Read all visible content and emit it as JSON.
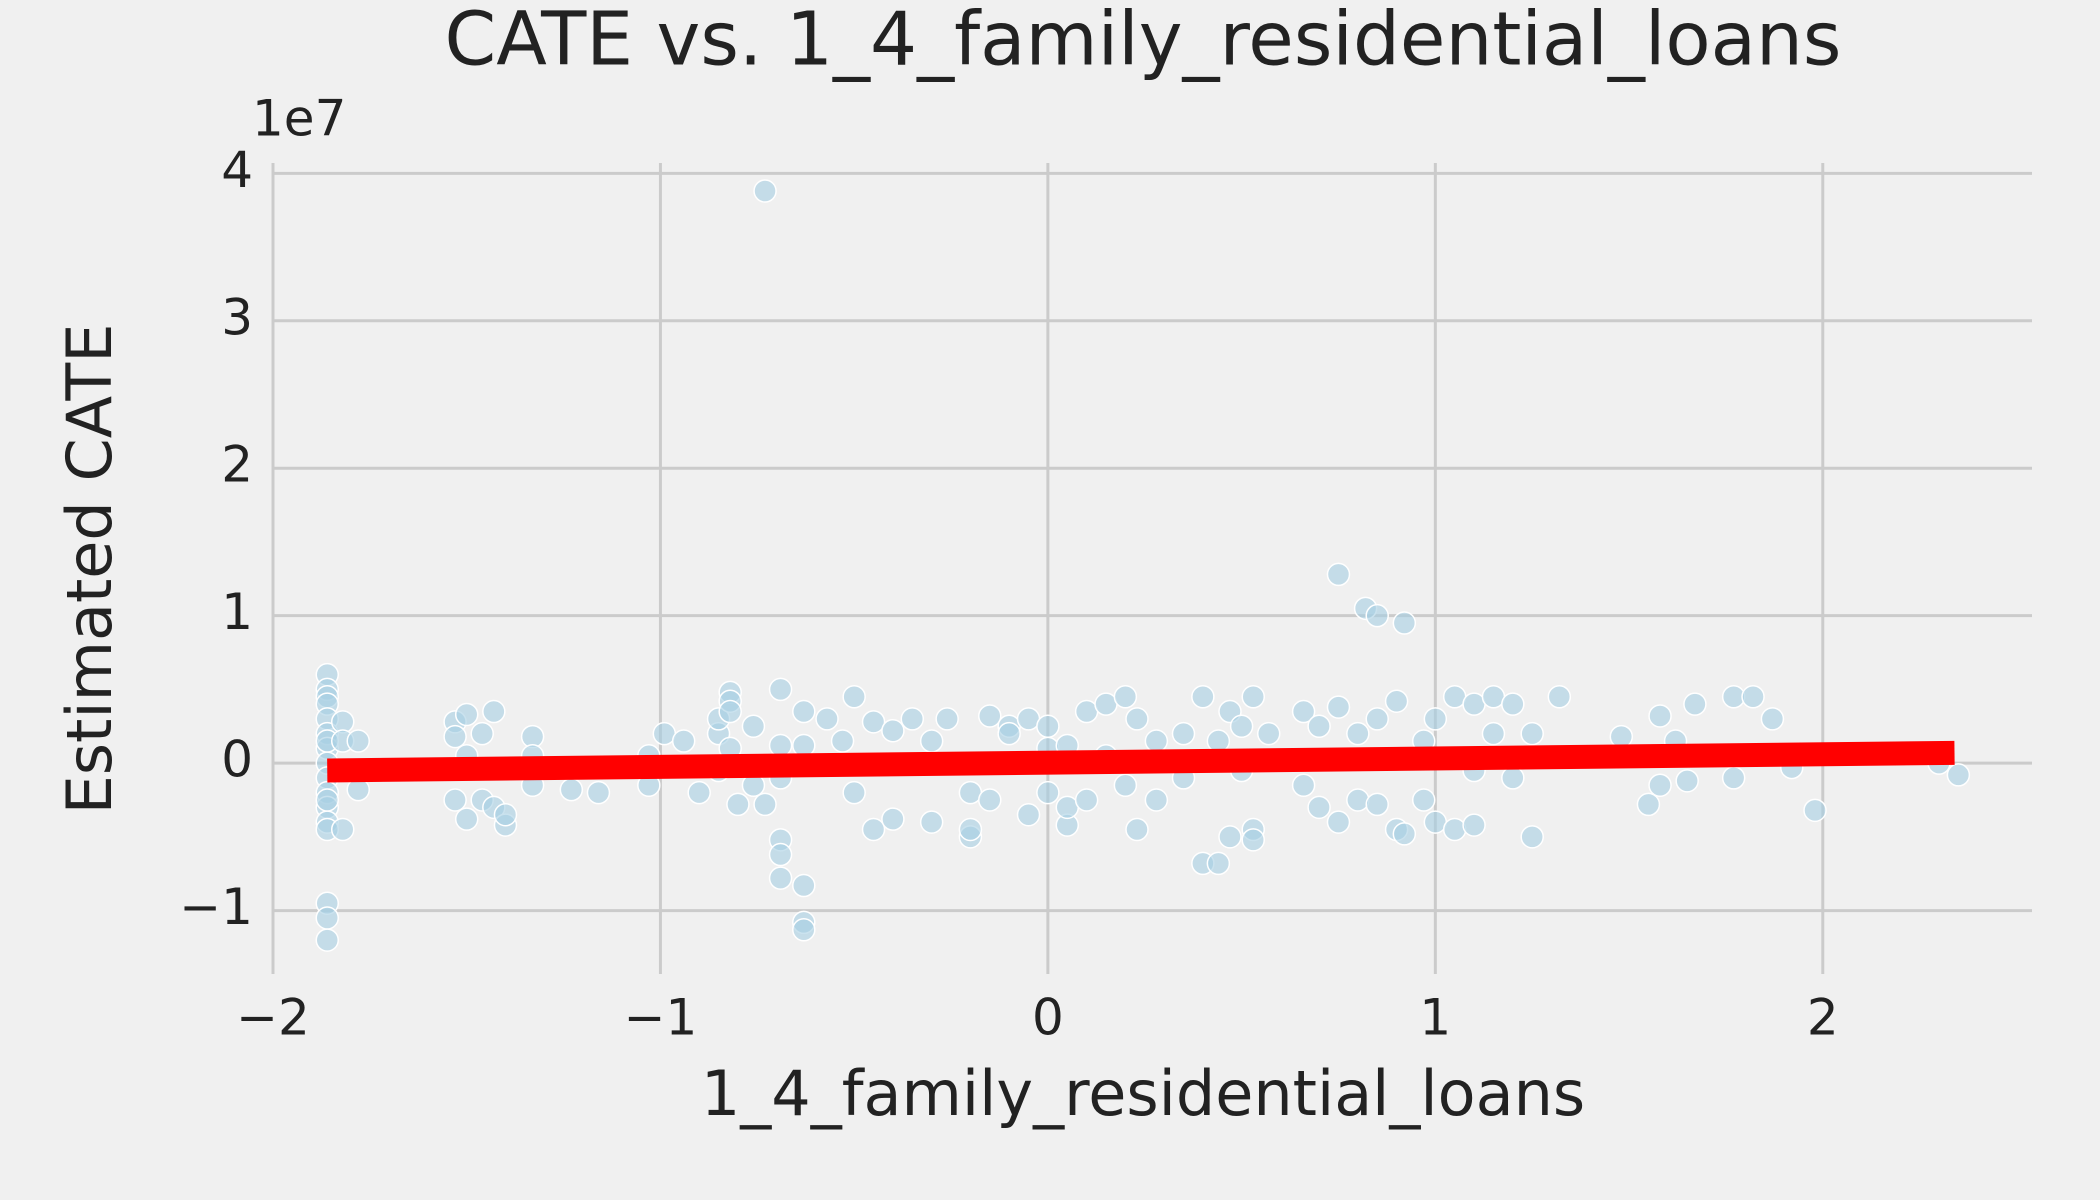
{
  "chart_data": {
    "type": "scatter",
    "title": "CATE vs. 1_4_family_residential_loans",
    "xlabel": "1_4_family_residential_loans",
    "ylabel": "Estimated CATE",
    "y_offset_label": "1e7",
    "color": "#a6cee3",
    "x": [
      -1.86,
      -1.86,
      -1.86,
      -1.86,
      -1.86,
      -1.86,
      -1.86,
      -1.86,
      -1.86,
      -1.86,
      -1.86,
      -1.86,
      -1.86,
      -1.86,
      -1.86,
      -1.86,
      -1.86,
      -1.86,
      -1.82,
      -1.82,
      -1.82,
      -1.78,
      -1.78,
      -1.53,
      -1.53,
      -1.53,
      -1.5,
      -1.5,
      -1.5,
      -1.46,
      -1.46,
      -1.43,
      -1.43,
      -1.4,
      -1.4,
      -1.33,
      -1.33,
      -1.33,
      -1.23,
      -1.16,
      -1.03,
      -1.03,
      -0.99,
      -0.94,
      -0.9,
      -0.85,
      -0.85,
      -0.85,
      -0.82,
      -0.82,
      -0.82,
      -0.82,
      -0.8,
      -0.76,
      -0.76,
      -0.73,
      -0.73,
      -0.69,
      -0.69,
      -0.69,
      -0.69,
      -0.69,
      -0.69,
      -0.63,
      -0.63,
      -0.63,
      -0.63,
      -0.63,
      -0.57,
      -0.53,
      -0.5,
      -0.5,
      -0.45,
      -0.45,
      -0.4,
      -0.4,
      -0.35,
      -0.3,
      -0.3,
      -0.26,
      -0.2,
      -0.2,
      -0.2,
      -0.15,
      -0.15,
      -0.1,
      -0.1,
      -0.05,
      -0.05,
      0,
      0,
      0,
      0.05,
      0.05,
      0.05,
      0.1,
      0.1,
      0.15,
      0.15,
      0.2,
      0.2,
      0.23,
      0.23,
      0.28,
      0.28,
      0.35,
      0.35,
      0.4,
      0.4,
      0.44,
      0.44,
      0.47,
      0.47,
      0.5,
      0.5,
      0.53,
      0.53,
      0.53,
      0.57,
      0.66,
      0.66,
      0.7,
      0.7,
      0.75,
      0.75,
      0.75,
      0.8,
      0.8,
      0.82,
      0.85,
      0.85,
      0.85,
      0.9,
      0.9,
      0.92,
      0.92,
      0.97,
      0.97,
      1.0,
      1.0,
      1.05,
      1.05,
      1.1,
      1.1,
      1.1,
      1.15,
      1.15,
      1.2,
      1.2,
      1.25,
      1.25,
      1.32,
      1.48,
      1.55,
      1.58,
      1.58,
      1.62,
      1.65,
      1.67,
      1.77,
      1.77,
      1.77,
      1.82,
      1.87,
      1.92,
      1.98,
      2.3,
      2.35
    ],
    "values": [
      0.6,
      0.5,
      0.45,
      0.4,
      0.3,
      0.2,
      0.1,
      0,
      -0.1,
      -0.2,
      -0.3,
      -0.4,
      -0.45,
      -0.95,
      -1.05,
      -1.2,
      0.15,
      -0.25,
      0.28,
      -0.45,
      0.15,
      0.15,
      -0.18,
      0.28,
      0.18,
      -0.25,
      0.33,
      -0.38,
      0.05,
      0.2,
      -0.25,
      0.35,
      -0.3,
      -0.42,
      -0.35,
      0.18,
      -0.15,
      0.05,
      -0.18,
      -0.2,
      -0.15,
      0.05,
      0.2,
      0.15,
      -0.2,
      0.2,
      0.3,
      -0.05,
      0.48,
      0.42,
      0.35,
      0.1,
      -0.28,
      0.25,
      -0.15,
      3.88,
      -0.28,
      0.5,
      -0.52,
      -0.62,
      -0.78,
      0.12,
      -0.1,
      -0.83,
      -1.08,
      -1.13,
      0.35,
      0.12,
      0.3,
      0.15,
      0.45,
      -0.2,
      -0.45,
      0.28,
      0.22,
      -0.38,
      0.3,
      -0.4,
      0.15,
      0.3,
      -0.5,
      -0.45,
      -0.2,
      0.32,
      -0.25,
      0.25,
      0.2,
      0.3,
      -0.35,
      0.25,
      0.1,
      -0.2,
      -0.42,
      0.12,
      -0.3,
      0.35,
      -0.25,
      0.4,
      0.05,
      0.45,
      -0.15,
      -0.45,
      0.3,
      0.15,
      -0.25,
      0.2,
      -0.1,
      0.45,
      -0.68,
      -0.68,
      0.15,
      -0.5,
      0.35,
      0.25,
      -0.05,
      0.45,
      -0.45,
      -0.52,
      0.2,
      0.35,
      -0.15,
      -0.3,
      0.25,
      1.28,
      0.38,
      -0.4,
      0.2,
      -0.25,
      1.05,
      1.0,
      0.3,
      -0.28,
      -0.45,
      0.42,
      0.95,
      -0.48,
      0.15,
      -0.25,
      0.3,
      -0.4,
      0.45,
      -0.45,
      0.4,
      -0.42,
      -0.05,
      0.45,
      0.2,
      0.4,
      -0.1,
      0.2,
      -0.5,
      0.45,
      0.18,
      -0.28,
      0.32,
      -0.15,
      0.15,
      -0.12,
      0.4,
      0.05,
      -0.1,
      0.45,
      0.45,
      0.3,
      -0.03,
      -0.32,
      0,
      -0.08
    ],
    "fit": {
      "x": [
        -1.86,
        2.34
      ],
      "values": [
        -0.05,
        0.07
      ],
      "color": "#ff0000"
    },
    "xlim": [
      -2.0,
      2.54
    ],
    "ylim": [
      -1.43,
      4.07
    ],
    "xticks": [
      {
        "value": -2,
        "label": "−2"
      },
      {
        "value": -1,
        "label": "−1"
      },
      0,
      1,
      2
    ],
    "yticks": [
      {
        "value": -1,
        "label": "−1"
      },
      0,
      1,
      2,
      3,
      4
    ],
    "grid": true
  }
}
